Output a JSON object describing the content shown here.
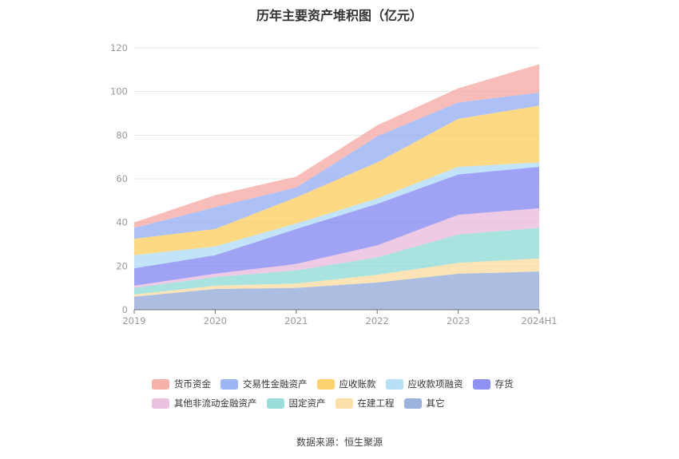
{
  "chart_data": {
    "type": "area",
    "stacked": true,
    "title": "历年主要资产堆积图（亿元）",
    "categories": [
      "2019",
      "2020",
      "2021",
      "2022",
      "2023",
      "2024H1"
    ],
    "ylim": [
      0,
      120
    ],
    "yticks": [
      0,
      20,
      40,
      60,
      80,
      100,
      120
    ],
    "grid": true,
    "legend_position": "bottom",
    "series": [
      {
        "name": "其它",
        "color": "#8aa5d6",
        "values": [
          6,
          9.5,
          10,
          12.5,
          16.5,
          17.5
        ]
      },
      {
        "name": "在建工程",
        "color": "#fbd99a",
        "values": [
          1,
          1.5,
          2,
          3.5,
          5,
          6
        ]
      },
      {
        "name": "固定资产",
        "color": "#87d8d4",
        "values": [
          3,
          4,
          6,
          8,
          13,
          14
        ]
      },
      {
        "name": "其他非流动金融资产",
        "color": "#e7b6d9",
        "values": [
          1,
          1.5,
          3,
          5.5,
          9,
          9
        ]
      },
      {
        "name": "存货",
        "color": "#7b7ff0",
        "values": [
          8,
          8.5,
          16,
          19,
          18.5,
          19
        ]
      },
      {
        "name": "应收款项融资",
        "color": "#a9daf7",
        "values": [
          6,
          4,
          2.5,
          2.5,
          3.5,
          2
        ]
      },
      {
        "name": "应收账款",
        "color": "#fdca55",
        "values": [
          7.5,
          8,
          12,
          16.5,
          22,
          26
        ]
      },
      {
        "name": "交易性金融资产",
        "color": "#8da9f4",
        "values": [
          5,
          10,
          4.5,
          12,
          7.5,
          6
        ]
      },
      {
        "name": "货币资金",
        "color": "#f5a39c",
        "values": [
          2.5,
          5.5,
          5,
          5,
          6.5,
          13
        ]
      }
    ],
    "legend_order": [
      "货币资金",
      "交易性金融资产",
      "应收账款",
      "应收款项融资",
      "存货",
      "其他非流动金融资产",
      "固定资产",
      "在建工程",
      "其它"
    ]
  },
  "source_label": "数据来源：恒生聚源"
}
